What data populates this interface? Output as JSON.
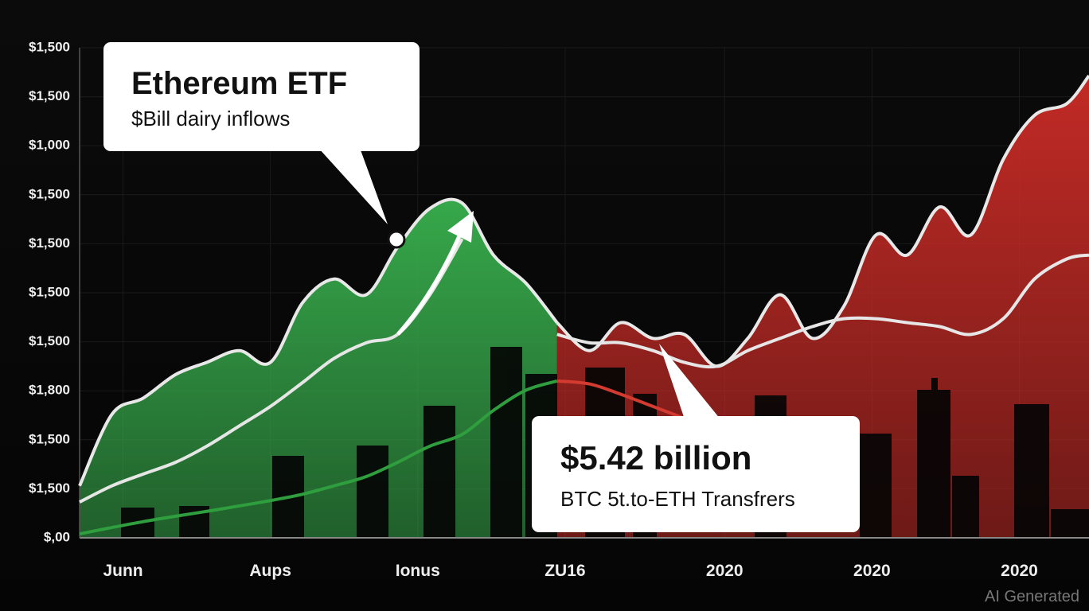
{
  "chart_data": {
    "type": "area",
    "xlim": [
      0,
      100
    ],
    "ylim": [
      0,
      10
    ],
    "yticks": [
      {
        "value": 0,
        "label": "$,00"
      },
      {
        "value": 1,
        "label": "$1,500"
      },
      {
        "value": 2,
        "label": "$1,500"
      },
      {
        "value": 3,
        "label": "$1,800"
      },
      {
        "value": 4,
        "label": "$1,500"
      },
      {
        "value": 5,
        "label": "$1,500"
      },
      {
        "value": 6,
        "label": "$1,500"
      },
      {
        "value": 7,
        "label": "$1,500"
      },
      {
        "value": 8,
        "label": "$1,000"
      },
      {
        "value": 9,
        "label": "$1,500"
      },
      {
        "value": 10,
        "label": "$1,500"
      }
    ],
    "xticks": [
      {
        "value": 4.3,
        "label": "Junn"
      },
      {
        "value": 18.9,
        "label": "Aups"
      },
      {
        "value": 33.5,
        "label": "Ionus"
      },
      {
        "value": 48.1,
        "label": "ZU16"
      },
      {
        "value": 63.9,
        "label": "2020"
      },
      {
        "value": 78.5,
        "label": "2020"
      },
      {
        "value": 93.1,
        "label": "2020"
      }
    ],
    "x": [
      0,
      3.2,
      6.3,
      9.5,
      12.6,
      15.8,
      18.9,
      22.1,
      25.2,
      28.4,
      31.5,
      34.7,
      37.9,
      41.0,
      44.2,
      47.3,
      50.5,
      53.6,
      56.8,
      59.9,
      63.1,
      66.2,
      69.4,
      72.6,
      75.7,
      78.9,
      82.0,
      85.2,
      88.3,
      91.5,
      94.6,
      97.8,
      100
    ],
    "series": [
      {
        "style": "area",
        "color": "#36a84a",
        "values": [
          1.06,
          2.52,
          2.85,
          3.33,
          3.58,
          3.82,
          3.58,
          4.8,
          5.28,
          4.96,
          5.93,
          6.72,
          6.83,
          5.77,
          5.2,
          4.39,
          null,
          null,
          null,
          null,
          null,
          null,
          null,
          null,
          null,
          null,
          null,
          null,
          null,
          null,
          null,
          null,
          null
        ]
      },
      {
        "style": "area",
        "color": "#c22a25",
        "values": [
          null,
          null,
          null,
          null,
          null,
          null,
          null,
          null,
          null,
          null,
          null,
          null,
          null,
          null,
          null,
          4.39,
          3.82,
          4.39,
          4.07,
          4.15,
          3.5,
          4.07,
          4.96,
          4.07,
          4.72,
          6.18,
          5.77,
          6.75,
          6.18,
          7.72,
          8.62,
          8.86,
          9.43
        ]
      },
      {
        "style": "line",
        "color": "#e6e6e6",
        "values": [
          0.73,
          1.06,
          1.3,
          1.54,
          1.87,
          2.28,
          2.68,
          3.17,
          3.66,
          3.98,
          4.15,
          4.96,
          6.1,
          null,
          null,
          4.15,
          3.98,
          3.98,
          3.82,
          3.58,
          3.5,
          3.82,
          4.07,
          4.31,
          4.47,
          4.47,
          4.39,
          4.31,
          4.15,
          4.47,
          5.28,
          5.69,
          5.77
        ]
      },
      {
        "style": "line",
        "color": "#2e9e3e",
        "values": [
          0.08,
          0.21,
          0.33,
          0.44,
          0.54,
          0.65,
          0.76,
          0.89,
          1.06,
          1.25,
          1.54,
          1.87,
          2.11,
          2.6,
          3.01,
          3.2,
          null,
          null,
          null,
          null,
          null,
          null,
          null,
          null,
          null,
          null,
          null,
          null,
          null,
          null,
          null,
          null,
          null
        ]
      },
      {
        "style": "line",
        "color": "#d33a30",
        "values": [
          null,
          null,
          null,
          null,
          null,
          null,
          null,
          null,
          null,
          null,
          null,
          null,
          null,
          null,
          null,
          3.2,
          3.14,
          2.93,
          2.68,
          2.44,
          null,
          null,
          null,
          null,
          null,
          null,
          null,
          null,
          null,
          null,
          null,
          null,
          null
        ]
      }
    ],
    "annotations": [
      {
        "title": "Ethereum ETF",
        "text": "$Bill dairy inflows"
      },
      {
        "title": "$5.42 billion",
        "text": "BTC 5t.to-ETH Transfrers"
      }
    ],
    "watermark": "AI Generated"
  }
}
